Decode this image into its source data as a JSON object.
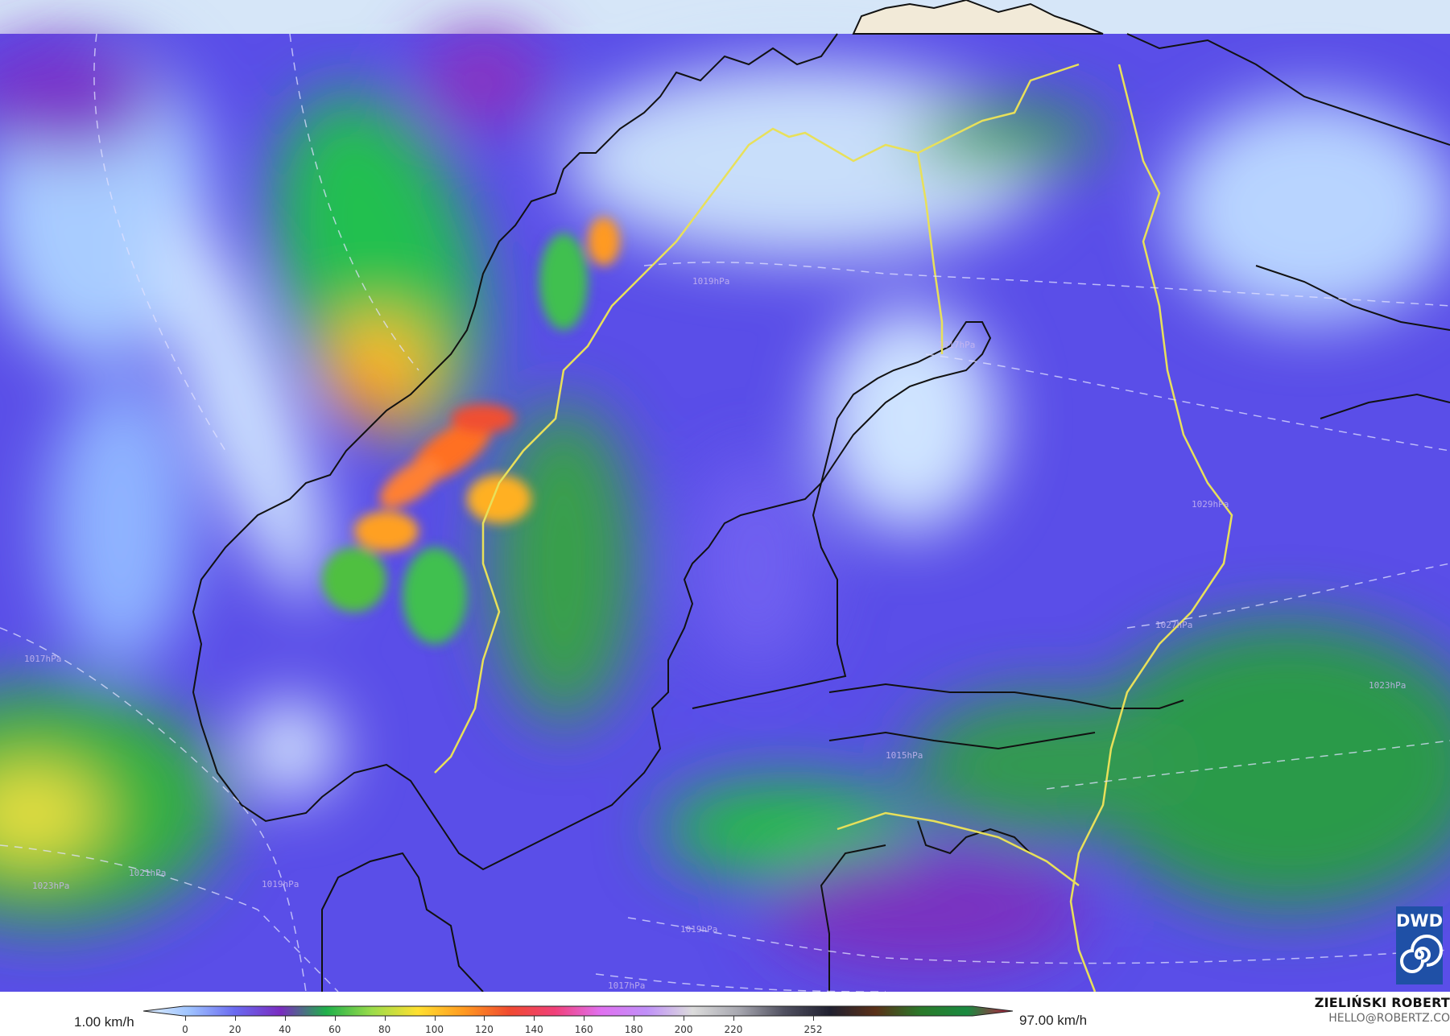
{
  "legend": {
    "min_label": "1.00 km/h",
    "max_label": "97.00 km/h",
    "ticks": [
      "0",
      "20",
      "40",
      "60",
      "80",
      "100",
      "120",
      "140",
      "160",
      "180",
      "200",
      "220",
      "252"
    ],
    "colors": [
      "#dfeeff",
      "#9fc4ff",
      "#6a6af0",
      "#7a2cc0",
      "#1fb04a",
      "#9bdc4a",
      "#ffe030",
      "#ff9a20",
      "#f04a30",
      "#f0407a",
      "#e070f0",
      "#c090f8",
      "#dcdcdc",
      "#a8a8b0",
      "#505060",
      "#202030",
      "#5a3018",
      "#2a7a2a",
      "#1a8a40",
      "#c01840"
    ]
  },
  "isobars": [
    "1017hPa",
    "1019hPa",
    "1021hPa",
    "1023hPa",
    "1019hPa",
    "1017hPa",
    "1015hPa",
    "1027hPa",
    "1029hPa",
    "1023hPa",
    "1019hPa",
    "1017hPa"
  ],
  "author": {
    "name": "ZIELIŃSKI ROBERT",
    "email": "HELLO@ROBERTZ.CO"
  },
  "logo": {
    "text": "DWD"
  }
}
